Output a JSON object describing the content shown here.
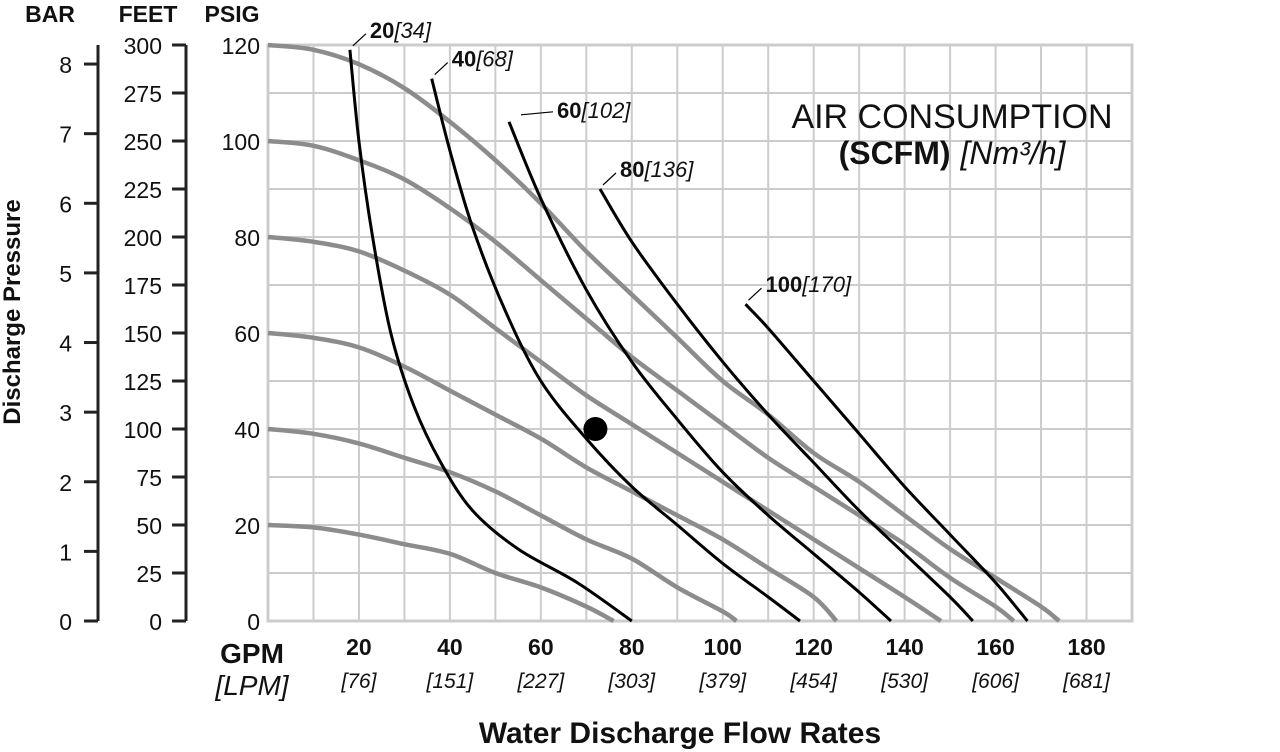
{
  "chart_data": {
    "type": "line",
    "axis_headers": [
      "BAR",
      "FEET",
      "PSIG"
    ],
    "ylabel": "Discharge Pressure",
    "xlabel": "Water Discharge Flow Rates",
    "x_unit_primary": "GPM",
    "x_unit_secondary": "[LPM]",
    "xlim": [
      0,
      190
    ],
    "ylim": [
      0,
      120
    ],
    "x_ticks": [
      20,
      40,
      60,
      80,
      100,
      120,
      140,
      160,
      180
    ],
    "x_ticks_lpm": [
      "[76]",
      "[151]",
      "[227]",
      "[303]",
      "[379]",
      "[454]",
      "[530]",
      "[606]",
      "[681]"
    ],
    "psig_ticks": [
      "0",
      "20",
      "40",
      "60",
      "80",
      "100",
      "120"
    ],
    "feet_ticks": [
      "0",
      "25",
      "50",
      "75",
      "100",
      "125",
      "150",
      "175",
      "200",
      "225",
      "250",
      "275",
      "300"
    ],
    "bar_ticks": [
      "0",
      "1",
      "2",
      "3",
      "4",
      "5",
      "6",
      "7",
      "8"
    ],
    "grid": true,
    "legend_title_line1": "AIR CONSUMPTION",
    "legend_title_line2_bold": "(SCFM)",
    "legend_title_line2_italic": "[Nm³/h]",
    "legend_position": "top-right",
    "pressure_curves": [
      {
        "points": [
          [
            0,
            120
          ],
          [
            10,
            119
          ],
          [
            20,
            116
          ],
          [
            30,
            111
          ],
          [
            40,
            104
          ],
          [
            50,
            96
          ],
          [
            60,
            87
          ],
          [
            70,
            77
          ],
          [
            80,
            68
          ],
          [
            90,
            59
          ],
          [
            100,
            50
          ],
          [
            110,
            43
          ],
          [
            120,
            35
          ],
          [
            130,
            29
          ],
          [
            140,
            22
          ],
          [
            150,
            15
          ],
          [
            160,
            9
          ],
          [
            170,
            3
          ],
          [
            174,
            0
          ]
        ]
      },
      {
        "points": [
          [
            0,
            100
          ],
          [
            10,
            99
          ],
          [
            20,
            96
          ],
          [
            30,
            92
          ],
          [
            40,
            86
          ],
          [
            50,
            79
          ],
          [
            60,
            71
          ],
          [
            70,
            63
          ],
          [
            80,
            55
          ],
          [
            90,
            48
          ],
          [
            100,
            41
          ],
          [
            110,
            34
          ],
          [
            120,
            28
          ],
          [
            130,
            22
          ],
          [
            140,
            16
          ],
          [
            150,
            9
          ],
          [
            160,
            3
          ],
          [
            164,
            0
          ]
        ]
      },
      {
        "points": [
          [
            0,
            80
          ],
          [
            10,
            79
          ],
          [
            20,
            77
          ],
          [
            30,
            73
          ],
          [
            40,
            68
          ],
          [
            50,
            61
          ],
          [
            60,
            54
          ],
          [
            70,
            47
          ],
          [
            80,
            41
          ],
          [
            90,
            35
          ],
          [
            100,
            29
          ],
          [
            110,
            23
          ],
          [
            120,
            17
          ],
          [
            130,
            11
          ],
          [
            140,
            5
          ],
          [
            148,
            0
          ]
        ]
      },
      {
        "points": [
          [
            0,
            60
          ],
          [
            10,
            59
          ],
          [
            20,
            57
          ],
          [
            30,
            53
          ],
          [
            40,
            48
          ],
          [
            50,
            43
          ],
          [
            60,
            38
          ],
          [
            70,
            32
          ],
          [
            80,
            27
          ],
          [
            90,
            22
          ],
          [
            100,
            17
          ],
          [
            110,
            11
          ],
          [
            120,
            5
          ],
          [
            125,
            0
          ]
        ]
      },
      {
        "points": [
          [
            0,
            40
          ],
          [
            10,
            39
          ],
          [
            20,
            37
          ],
          [
            30,
            34
          ],
          [
            40,
            31
          ],
          [
            50,
            27
          ],
          [
            60,
            22
          ],
          [
            70,
            17
          ],
          [
            80,
            13
          ],
          [
            90,
            7
          ],
          [
            100,
            2
          ],
          [
            103,
            0
          ]
        ]
      },
      {
        "points": [
          [
            0,
            20
          ],
          [
            10,
            19.5
          ],
          [
            20,
            18
          ],
          [
            30,
            16
          ],
          [
            40,
            14
          ],
          [
            50,
            10
          ],
          [
            60,
            7
          ],
          [
            70,
            3
          ],
          [
            76,
            0
          ]
        ]
      }
    ],
    "air_curves": [
      {
        "label_bold": "20",
        "label_italic": "[34]",
        "points": [
          [
            18,
            119
          ],
          [
            20,
            100
          ],
          [
            23,
            80
          ],
          [
            27,
            60
          ],
          [
            32,
            45
          ],
          [
            38,
            33
          ],
          [
            45,
            23
          ],
          [
            55,
            15
          ],
          [
            68,
            8
          ],
          [
            80,
            0
          ]
        ]
      },
      {
        "label_bold": "40",
        "label_italic": "[68]",
        "points": [
          [
            36,
            113
          ],
          [
            40,
            98
          ],
          [
            45,
            82
          ],
          [
            52,
            65
          ],
          [
            60,
            50
          ],
          [
            70,
            38
          ],
          [
            80,
            28
          ],
          [
            90,
            20
          ],
          [
            100,
            12
          ],
          [
            110,
            5
          ],
          [
            117,
            0
          ]
        ]
      },
      {
        "label_bold": "60",
        "label_italic": "[102]",
        "points": [
          [
            53,
            104
          ],
          [
            60,
            88
          ],
          [
            70,
            69
          ],
          [
            80,
            54
          ],
          [
            90,
            42
          ],
          [
            100,
            31
          ],
          [
            110,
            22
          ],
          [
            120,
            14
          ],
          [
            130,
            6
          ],
          [
            137,
            0
          ]
        ]
      },
      {
        "label_bold": "80",
        "label_italic": "[136]",
        "points": [
          [
            73,
            90
          ],
          [
            80,
            79
          ],
          [
            90,
            66
          ],
          [
            100,
            54
          ],
          [
            110,
            43
          ],
          [
            120,
            33
          ],
          [
            130,
            23
          ],
          [
            140,
            14
          ],
          [
            150,
            5
          ],
          [
            155,
            0
          ]
        ]
      },
      {
        "label_bold": "100",
        "label_italic": "[170]",
        "points": [
          [
            105,
            66
          ],
          [
            110,
            61
          ],
          [
            120,
            50
          ],
          [
            130,
            39
          ],
          [
            140,
            28
          ],
          [
            150,
            18
          ],
          [
            160,
            8
          ],
          [
            167,
            0
          ]
        ]
      }
    ],
    "marker": {
      "x": 72,
      "y": 40
    }
  }
}
